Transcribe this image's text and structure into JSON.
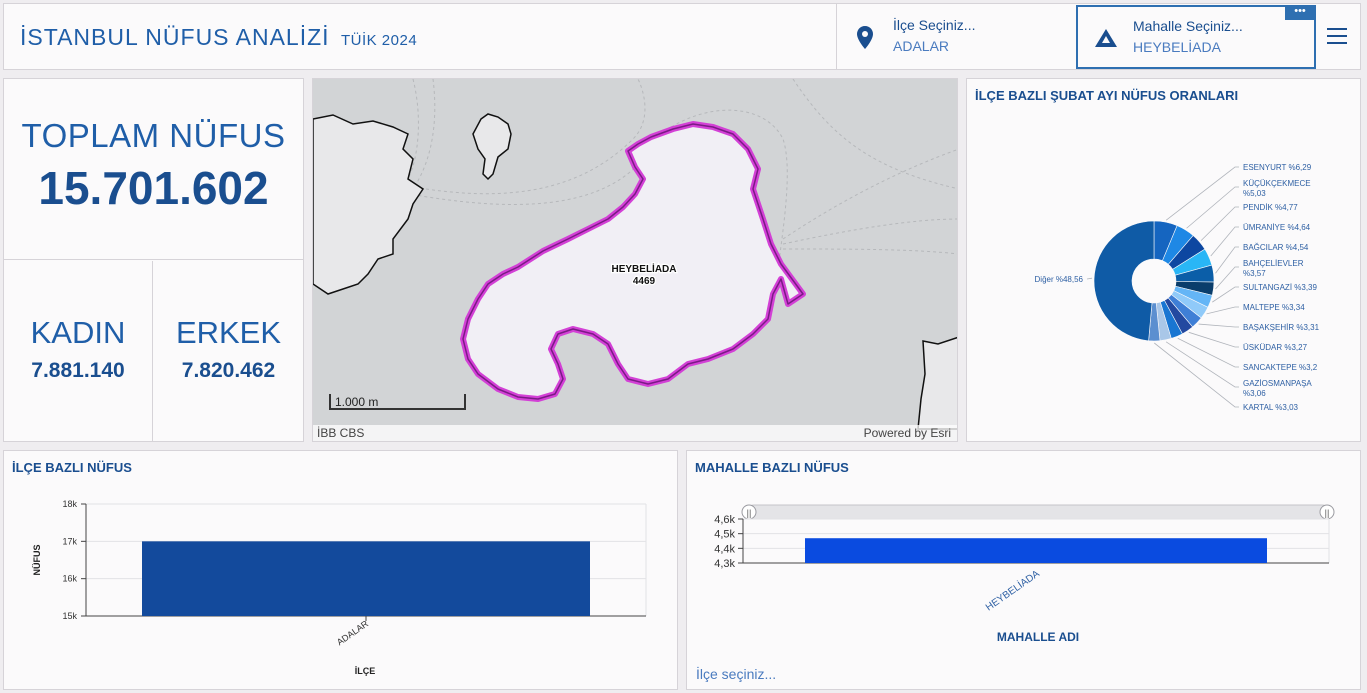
{
  "header": {
    "title": "İSTANBUL NÜFUS ANALİZİ",
    "subtitle": "TÜİK 2024",
    "district_selector": {
      "label": "İlçe Seçiniz...",
      "value": "ADALAR",
      "icon": "map-pin-icon"
    },
    "neighborhood_selector": {
      "label": "Mahalle Seçiniz...",
      "value": "HEYBELİADA",
      "icon": "mountain-icon",
      "more": "•••"
    },
    "menu_icon": "hamburger-menu-icon"
  },
  "stats": {
    "total_label": "TOPLAM NÜFUS",
    "total_value": "15.701.602",
    "female_label": "KADIN",
    "female_value": "7.881.140",
    "male_label": "ERKEK",
    "male_value": "7.820.462"
  },
  "map": {
    "feature_name": "HEYBELİADA",
    "feature_value": "4469",
    "scale_label": "1.000 m",
    "attribution_left": "İBB CBS",
    "attribution_right": "Powered by Esri"
  },
  "pie": {
    "title": "İLÇE BAZLI ŞUBAT AYI NÜFUS ORANLARI"
  },
  "bar1": {
    "title": "İLÇE BAZLI NÜFUS",
    "footer": ""
  },
  "bar2": {
    "title": "MAHALLE BAZLI NÜFUS",
    "footer": "İlçe seçiniz..."
  },
  "chart_data": [
    {
      "type": "pie",
      "title": "İLÇE BAZLI ŞUBAT AYI NÜFUS ORANLARI",
      "donut": true,
      "slices": [
        {
          "label": "ESENYURT %6,29",
          "value": 6.29,
          "color": "#1565c0"
        },
        {
          "label": "KÜÇÜKÇEKMECE %5,03",
          "value": 5.03,
          "color": "#1e88e5"
        },
        {
          "label": "PENDİK %4,77",
          "value": 4.77,
          "color": "#0d47a1"
        },
        {
          "label": "ÜMRANİYE %4,64",
          "value": 4.64,
          "color": "#29b6f6"
        },
        {
          "label": "BAĞCILAR %4,54",
          "value": 4.54,
          "color": "#0b5ea8"
        },
        {
          "label": "BAHÇELİEVLER %3,57",
          "value": 3.57,
          "color": "#0a3d6b"
        },
        {
          "label": "SULTANGAZİ %3,39",
          "value": 3.39,
          "color": "#64b5f6"
        },
        {
          "label": "MALTEPE %3,34",
          "value": 3.34,
          "color": "#90caf9"
        },
        {
          "label": "BAŞAKŞEHİR %3,31",
          "value": 3.31,
          "color": "#3f7fd6"
        },
        {
          "label": "ÜSKÜDAR %3,27",
          "value": 3.27,
          "color": "#2349a0"
        },
        {
          "label": "SANCAKTEPE %3,2",
          "value": 3.2,
          "color": "#1976d2"
        },
        {
          "label": "GAZİOSMANPAŞA %3,06",
          "value": 3.06,
          "color": "#a9c7e8"
        },
        {
          "label": "KARTAL %3,03",
          "value": 3.03,
          "color": "#5b8fd0"
        },
        {
          "label": "Diğer %48,56",
          "value": 48.56,
          "color": "#0f5ba6"
        }
      ]
    },
    {
      "type": "bar",
      "title": "İLÇE BAZLI NÜFUS",
      "categories": [
        "ADALAR"
      ],
      "values": [
        17000
      ],
      "xlabel": "İLÇE",
      "ylabel": "NÜFUS",
      "ylim": [
        15000,
        18000
      ],
      "yticks": [
        "15k",
        "16k",
        "17k",
        "18k"
      ],
      "ytick_values": [
        15000,
        16000,
        17000,
        18000
      ],
      "color": "#134a9c",
      "grid": true
    },
    {
      "type": "bar",
      "title": "MAHALLE BAZLI NÜFUS",
      "categories": [
        "HEYBELİADA"
      ],
      "values": [
        4469
      ],
      "xlabel": "MAHALLE ADI",
      "ylabel": "",
      "ylim": [
        4300,
        4600
      ],
      "yticks": [
        "4,3k",
        "4,4k",
        "4,5k",
        "4,6k"
      ],
      "ytick_values": [
        4300,
        4400,
        4500,
        4600
      ],
      "color": "#0a4be0",
      "grid": true
    }
  ]
}
